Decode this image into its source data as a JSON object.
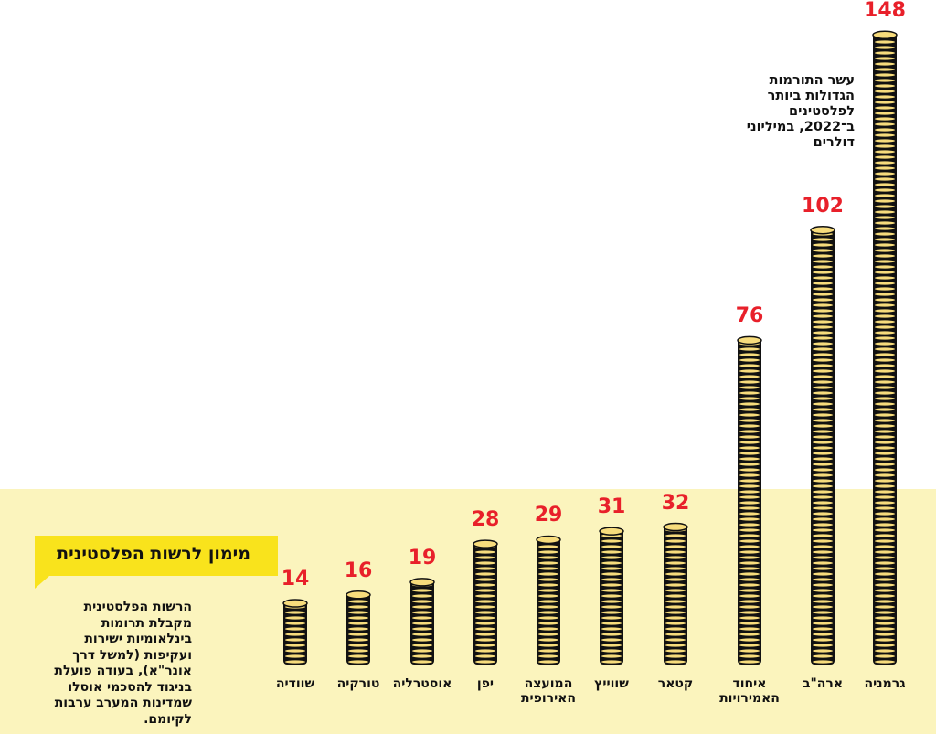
{
  "chart_data": {
    "type": "bar",
    "title": "מימון לרשות הפלסטינית",
    "subtitle": "עשר התורמות הגדולות ביותר לפלסטינים ב־2022, במיליוני דולרים",
    "description": "הרשות הפלסטינית מקבלת תרומות בינלאומיות ישירות ועקיפות (למשל דרך אונר\"א), בעודה פועלת בניגוד להסכמי אוסלו שמדינות המערב ערבות לקיומם.",
    "categories": [
      "גרמניה",
      "ארה\"ב",
      "איחוד האמירויות",
      "קטאר",
      "שווייץ",
      "המועצה האירופית",
      "יפן",
      "אוסטרליה",
      "טורקיה",
      "שוודיה"
    ],
    "values": [
      148,
      102,
      76,
      32,
      31,
      29,
      28,
      19,
      16,
      14
    ],
    "ylabel": "מיליוני דולרים",
    "ylim": [
      0,
      150
    ],
    "colors": {
      "value": "#e8202a",
      "coin": "#f7dc7c",
      "coin_edge": "#111111",
      "panel": "#fbf4bd",
      "banner": "#f9e31c"
    }
  }
}
